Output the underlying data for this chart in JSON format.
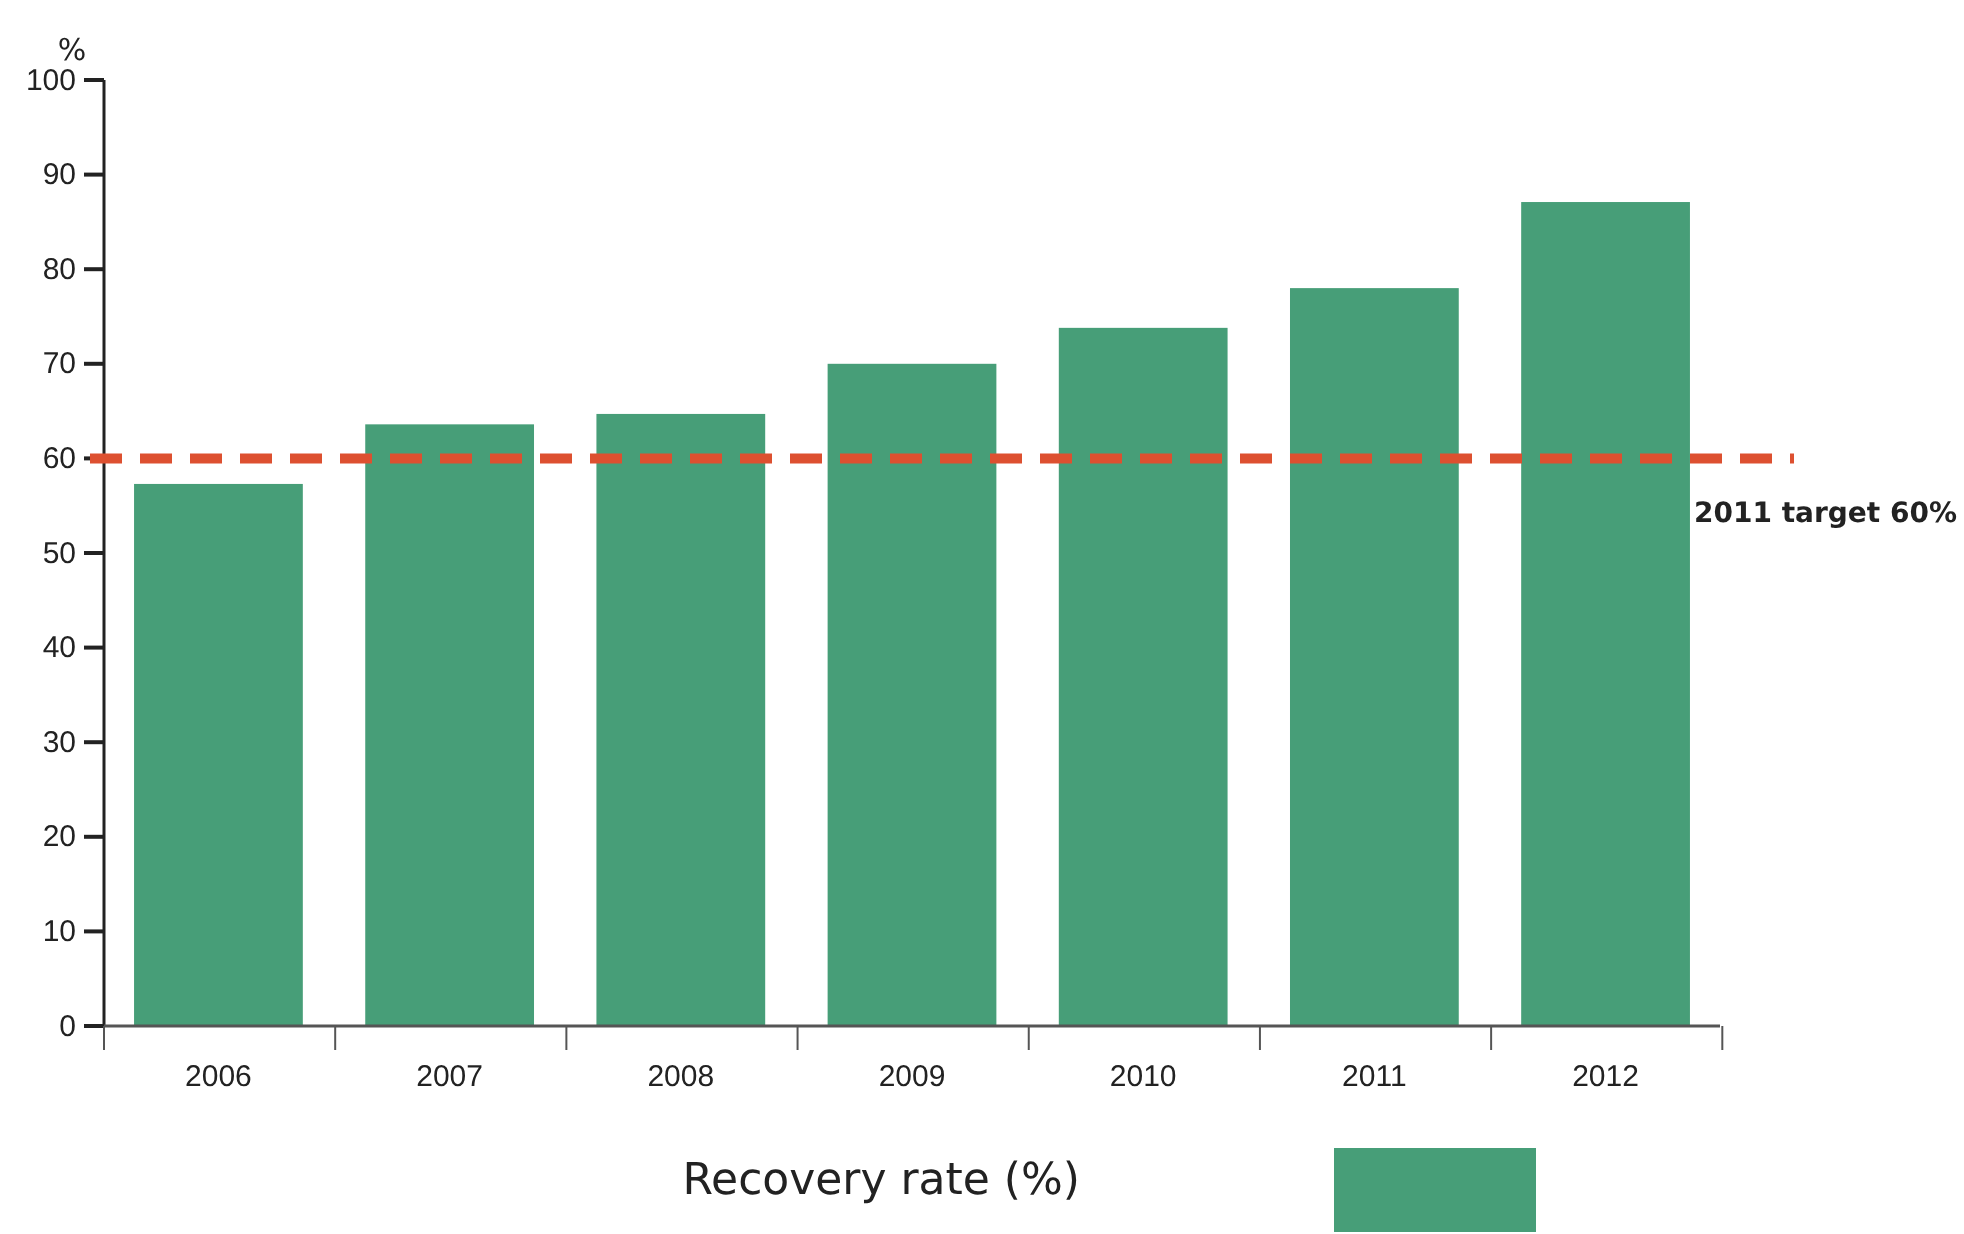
{
  "chart_data": {
    "type": "bar",
    "ylabel": "%",
    "categories": [
      "2006",
      "2007",
      "2008",
      "2009",
      "2010",
      "2011",
      "2012"
    ],
    "series": [
      {
        "name": "Recovery rate (%)",
        "color": "#479e78",
        "values": [
          57.3,
          63.6,
          64.7,
          70,
          73.8,
          78,
          87.1
        ]
      }
    ],
    "ylim": [
      0,
      100
    ],
    "yticks": [
      0,
      10,
      20,
      30,
      40,
      50,
      60,
      70,
      80,
      90,
      100
    ],
    "grid": false,
    "legend": "bottom",
    "ref_lines": [
      {
        "axis": "y",
        "value": 60,
        "label": "2011 target 60%",
        "color": "#dd5030",
        "line_style": "dashed"
      }
    ]
  }
}
